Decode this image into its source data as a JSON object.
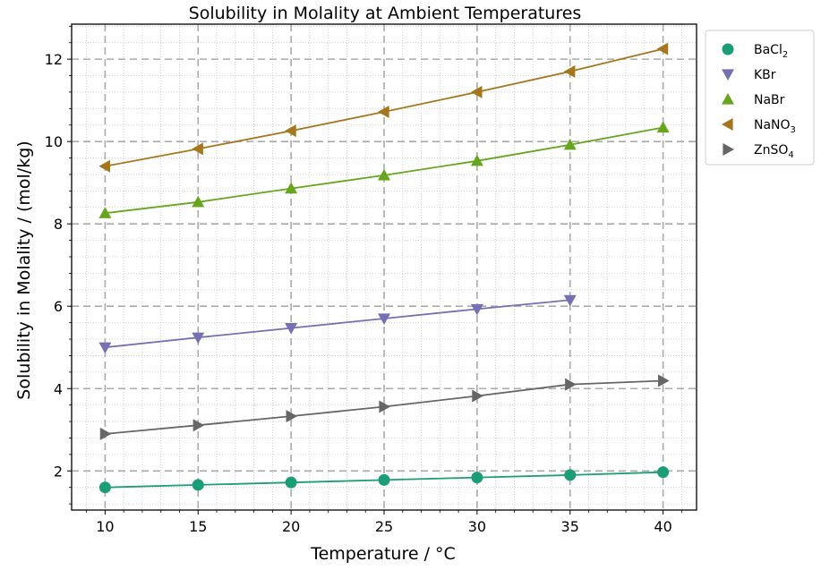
{
  "chart_data": {
    "type": "line",
    "title": "Solubility in Molality at Ambient Temperatures",
    "xlabel": "Temperature / °C",
    "ylabel": "Solubility in Molality / (mol/kg)",
    "xlim": [
      8.2,
      41.8
    ],
    "ylim": [
      1.05,
      12.85
    ],
    "xticks": [
      10,
      15,
      20,
      25,
      30,
      35,
      40
    ],
    "yticks": [
      2,
      4,
      6,
      8,
      10,
      12
    ],
    "grid": true,
    "legend_position": "top-right, outside plot",
    "series": [
      {
        "name": "BaCl",
        "subscript": "2",
        "color": "#1b9e77",
        "marker": "circle",
        "x": [
          10,
          15,
          20,
          25,
          30,
          35,
          40
        ],
        "y": [
          1.6,
          1.66,
          1.72,
          1.78,
          1.84,
          1.9,
          1.97
        ]
      },
      {
        "name": "KBr",
        "subscript": "",
        "color": "#7570b3",
        "marker": "triangle-down",
        "x": [
          10,
          15,
          20,
          25,
          30,
          35
        ],
        "y": [
          5.0,
          5.24,
          5.47,
          5.7,
          5.93,
          6.15
        ]
      },
      {
        "name": "NaBr",
        "subscript": "",
        "color": "#66a61e",
        "marker": "triangle-up",
        "x": [
          10,
          15,
          20,
          25,
          30,
          35,
          40
        ],
        "y": [
          8.26,
          8.53,
          8.86,
          9.18,
          9.53,
          9.92,
          10.34
        ]
      },
      {
        "name": "NaNO",
        "subscript": "3",
        "color": "#a6761d",
        "marker": "triangle-left",
        "x": [
          10,
          15,
          20,
          25,
          30,
          35,
          40
        ],
        "y": [
          9.4,
          9.82,
          10.26,
          10.72,
          11.2,
          11.7,
          12.25
        ]
      },
      {
        "name": "ZnSO",
        "subscript": "4",
        "color": "#666666",
        "marker": "triangle-right",
        "x": [
          10,
          15,
          20,
          25,
          30,
          35,
          40
        ],
        "y": [
          2.9,
          3.11,
          3.33,
          3.56,
          3.82,
          4.1,
          4.19
        ]
      }
    ]
  }
}
